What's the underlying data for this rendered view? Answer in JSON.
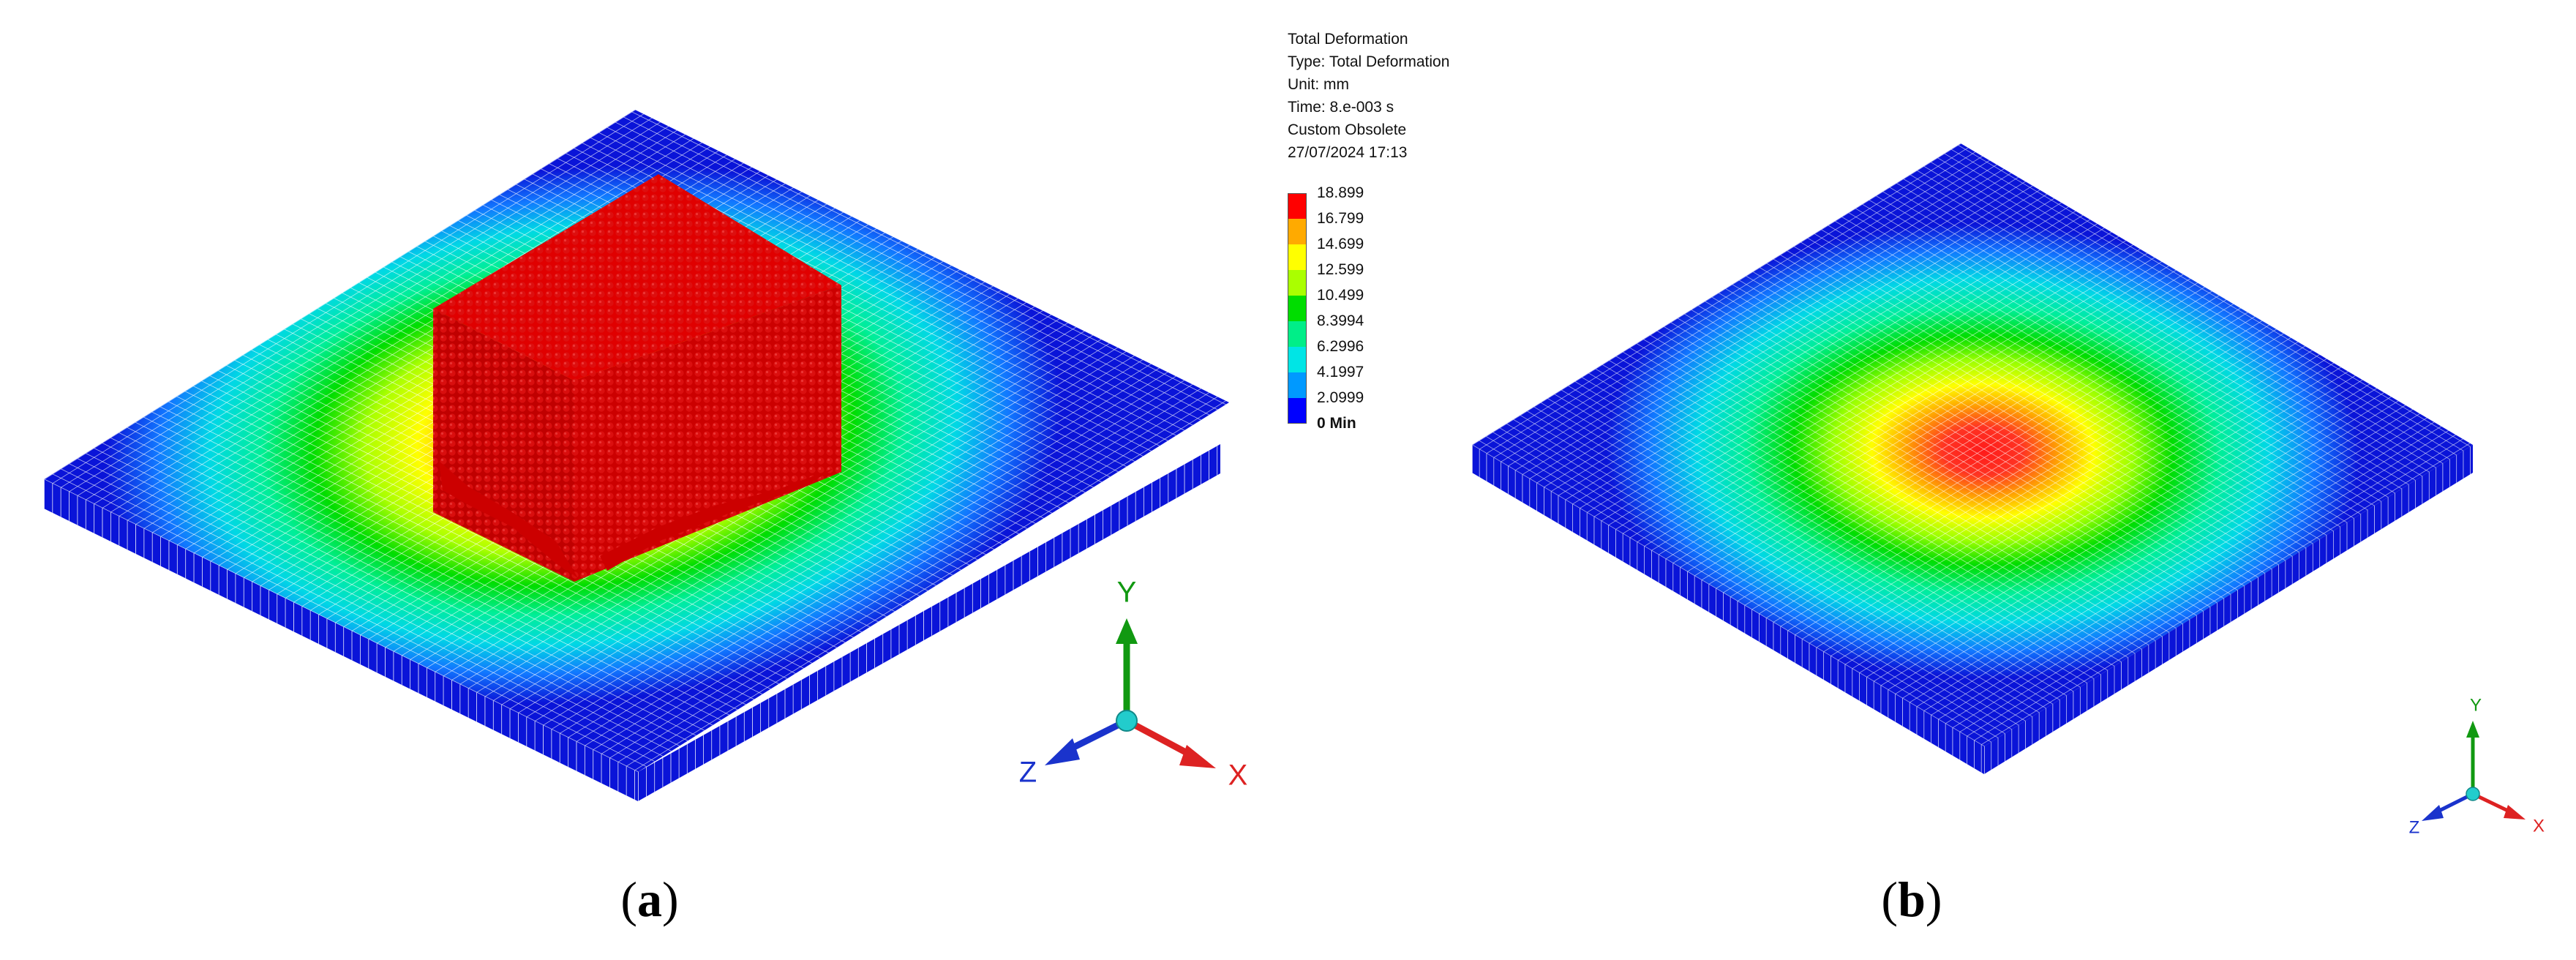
{
  "result_info": {
    "title": "Total Deformation",
    "type": "Type: Total Deformation",
    "unit": "Unit: mm",
    "time": "Time: 8.e-003 s",
    "custom": "Custom Obsolete",
    "timestamp": "27/07/2024 17:13"
  },
  "legend": {
    "labels": [
      "18.899",
      "16.799",
      "14.699",
      "12.599",
      "10.499",
      "8.3994",
      "6.2996",
      "4.1997",
      "2.0999",
      "0 Min"
    ],
    "band_colors": [
      "#ff0000",
      "#ffaa00",
      "#ffff00",
      "#aaff00",
      "#00dd00",
      "#00ee88",
      "#00e5e5",
      "#0099ff",
      "#0000ff"
    ]
  },
  "triad_a": {
    "x_label": "X",
    "y_label": "Y",
    "z_label": "Z"
  },
  "triad_b": {
    "x_label": "X",
    "y_label": "Y",
    "z_label": "Z"
  },
  "captions": {
    "a": {
      "open": "(",
      "letter": "a",
      "close": ")"
    },
    "b": {
      "open": "(",
      "letter": "b",
      "close": ")"
    }
  },
  "colors": {
    "mesh_blue": "#0a14d8",
    "block_red": "#cc0000",
    "mesh_line": "#ffffff",
    "triad_x": "#dd2222",
    "triad_y": "#119911",
    "triad_z": "#1a33cc",
    "triad_origin": "#22cccc"
  }
}
